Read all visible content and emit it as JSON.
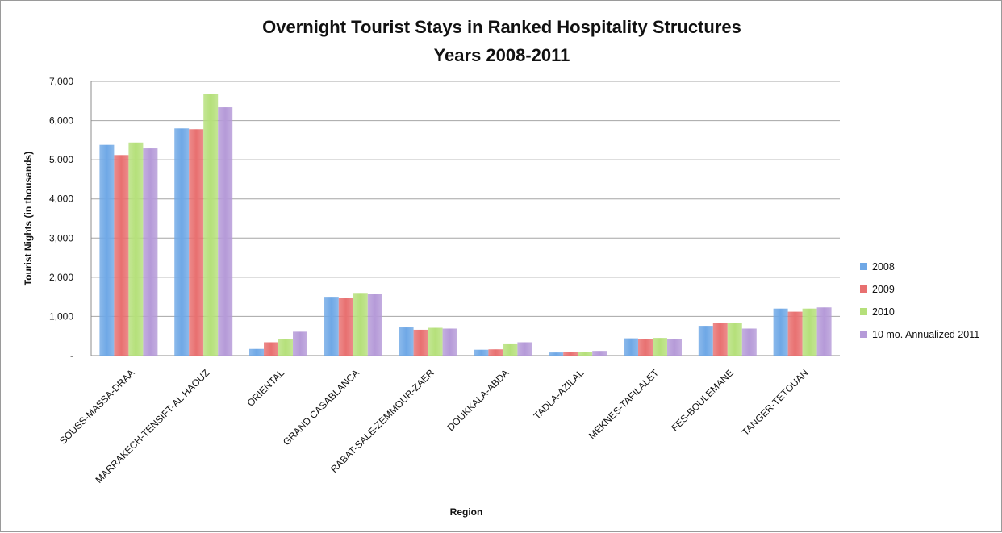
{
  "chart_data": {
    "type": "bar",
    "title": "Overnight Tourist Stays in Ranked Hospitality Structures",
    "subtitle": "Years 2008-2011",
    "xlabel": "Region",
    "ylabel": "Tourist Nights (in thousands)",
    "ylim": [
      0,
      7000
    ],
    "yticks": [
      0,
      1000,
      2000,
      3000,
      4000,
      5000,
      6000,
      7000
    ],
    "ytick_labels": [
      "-",
      "1,000",
      "2,000",
      "3,000",
      "4,000",
      "5,000",
      "6,000",
      "7,000"
    ],
    "grid": true,
    "legend_position": "right",
    "categories": [
      "SOUSS-MASSA-DRAA",
      "MARRAKECH-TENSIFT-AL HAOUZ",
      "ORIENTAL",
      "GRAND CASABLANCA",
      "RABAT-SALE-ZEMMOUR-ZAER",
      "DOUKKALA-ABDA",
      "TADLA-AZILAL",
      "MEKNES-TAFILALET",
      "FES-BOULEMANE",
      "TANGER-TETOUAN"
    ],
    "series": [
      {
        "name": "2008",
        "color": "#6fa8e6",
        "values": [
          5380,
          5800,
          170,
          1500,
          720,
          150,
          80,
          440,
          760,
          1200
        ]
      },
      {
        "name": "2009",
        "color": "#e87070",
        "values": [
          5120,
          5780,
          340,
          1480,
          660,
          160,
          90,
          420,
          840,
          1120
        ]
      },
      {
        "name": "2010",
        "color": "#b5e07a",
        "values": [
          5440,
          6680,
          430,
          1600,
          710,
          310,
          100,
          450,
          840,
          1200
        ]
      },
      {
        "name": "10 mo. Annualized 2011",
        "color": "#b59ad8",
        "values": [
          5290,
          6340,
          610,
          1580,
          690,
          340,
          120,
          430,
          690,
          1230
        ]
      }
    ]
  }
}
